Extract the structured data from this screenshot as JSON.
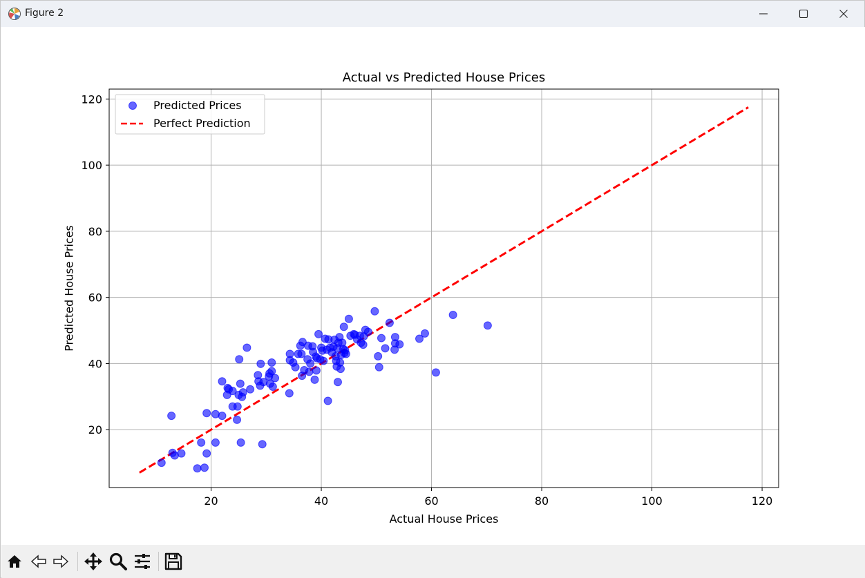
{
  "window": {
    "title": "Figure 2",
    "minimize_icon": "minimize-icon",
    "maximize_icon": "maximize-icon",
    "close_icon": "close-icon"
  },
  "toolbar": {
    "tools": [
      "home-icon",
      "back-arrow-icon",
      "forward-arrow-icon",
      "pan-icon",
      "zoom-icon",
      "configure-subplots-icon",
      "save-icon"
    ]
  },
  "chart_data": {
    "type": "scatter",
    "title": "Actual vs Predicted House Prices",
    "xlabel": "Actual House Prices",
    "ylabel": "Predicted House Prices",
    "xlim": [
      1.5,
      123
    ],
    "ylim": [
      2.5,
      123
    ],
    "xticks": [
      20,
      40,
      60,
      80,
      100,
      120
    ],
    "yticks": [
      20,
      40,
      60,
      80,
      100,
      120
    ],
    "grid": true,
    "legend_position": "upper-left",
    "colors": {
      "scatter": "#0000ff",
      "line": "#ff0000",
      "grid": "#b0b0b0"
    },
    "series": [
      {
        "name": "Predicted Prices",
        "kind": "scatter",
        "points": [
          [
            11,
            10
          ],
          [
            12.8,
            24.2
          ],
          [
            13,
            13
          ],
          [
            13.4,
            12.2
          ],
          [
            14.6,
            12.8
          ],
          [
            17.5,
            8.3
          ],
          [
            18.2,
            16.1
          ],
          [
            18.8,
            8.5
          ],
          [
            19.2,
            12.8
          ],
          [
            19.2,
            25
          ],
          [
            20.8,
            24.7
          ],
          [
            20.8,
            16.1
          ],
          [
            22,
            24.2
          ],
          [
            22,
            34.6
          ],
          [
            22.9,
            30.5
          ],
          [
            23,
            32.6
          ],
          [
            23.2,
            32.2
          ],
          [
            23.9,
            31.7
          ],
          [
            23.9,
            27
          ],
          [
            24.7,
            23
          ],
          [
            24.8,
            27
          ],
          [
            25,
            30.5
          ],
          [
            25.1,
            41.3
          ],
          [
            25.3,
            33.9
          ],
          [
            25.4,
            16.1
          ],
          [
            25.6,
            29.9
          ],
          [
            25.8,
            31.3
          ],
          [
            26.5,
            44.8
          ],
          [
            27.1,
            32.2
          ],
          [
            28.5,
            36.5
          ],
          [
            28.6,
            34.6
          ],
          [
            28.9,
            33.3
          ],
          [
            29,
            39.9
          ],
          [
            29.3,
            15.6
          ],
          [
            29.5,
            34.4
          ],
          [
            30.5,
            36.1
          ],
          [
            30.6,
            37
          ],
          [
            30.7,
            33.9
          ],
          [
            31,
            37.7
          ],
          [
            31,
            40.3
          ],
          [
            31.2,
            33
          ],
          [
            31.6,
            35.6
          ],
          [
            34.2,
            31
          ],
          [
            34.3,
            42.9
          ],
          [
            34.3,
            41
          ],
          [
            34.9,
            40.3
          ],
          [
            35.3,
            38.9
          ],
          [
            35.8,
            42.9
          ],
          [
            36.2,
            45.4
          ],
          [
            36.4,
            42.9
          ],
          [
            36.5,
            36.3
          ],
          [
            36.6,
            46.5
          ],
          [
            36.9,
            38
          ],
          [
            37.5,
            41.3
          ],
          [
            37.6,
            45.4
          ],
          [
            37.8,
            37.5
          ],
          [
            38,
            40
          ],
          [
            38.4,
            45.2
          ],
          [
            38.5,
            43.5
          ],
          [
            38.8,
            35.1
          ],
          [
            39,
            42.1
          ],
          [
            39.1,
            37.9
          ],
          [
            39.2,
            41.6
          ],
          [
            39.5,
            48.9
          ],
          [
            39.8,
            41.3
          ],
          [
            40,
            44.8
          ],
          [
            40.2,
            43.9
          ],
          [
            40.4,
            40.8
          ],
          [
            40.7,
            47.5
          ],
          [
            41,
            44.2
          ],
          [
            41.2,
            28.7
          ],
          [
            41.3,
            47.3
          ],
          [
            41.6,
            44.8
          ],
          [
            41.9,
            43.4
          ],
          [
            42.2,
            45.1
          ],
          [
            42.4,
            47.2
          ],
          [
            42.6,
            42.2
          ],
          [
            42.7,
            40.8
          ],
          [
            42.8,
            39.1
          ],
          [
            42.9,
            44.6
          ],
          [
            43,
            34.4
          ],
          [
            43.1,
            46.3
          ],
          [
            43.3,
            48
          ],
          [
            43.4,
            40.3
          ],
          [
            43.5,
            38.4
          ],
          [
            43.6,
            42.6
          ],
          [
            43.8,
            46.3
          ],
          [
            44,
            44.4
          ],
          [
            44.1,
            51.1
          ],
          [
            44.2,
            43.2
          ],
          [
            44.3,
            44
          ],
          [
            44.5,
            42.9
          ],
          [
            45,
            53.5
          ],
          [
            45.3,
            48.4
          ],
          [
            45.9,
            48.9
          ],
          [
            46.1,
            48.7
          ],
          [
            46.5,
            47.3
          ],
          [
            47,
            48.4
          ],
          [
            47.2,
            46.3
          ],
          [
            47.6,
            45.7
          ],
          [
            47.7,
            48.2
          ],
          [
            48,
            50.2
          ],
          [
            48.5,
            49.6
          ],
          [
            49.7,
            55.8
          ],
          [
            50.3,
            42.2
          ],
          [
            50.5,
            38.9
          ],
          [
            50.9,
            47.7
          ],
          [
            51.6,
            44.6
          ],
          [
            52.4,
            52.3
          ],
          [
            53.3,
            44.2
          ],
          [
            53.4,
            46.1
          ],
          [
            53.4,
            48
          ],
          [
            54.2,
            45.8
          ],
          [
            57.8,
            47.5
          ],
          [
            58.8,
            49.1
          ],
          [
            60.8,
            37.3
          ],
          [
            63.9,
            54.7
          ],
          [
            70.2,
            51.5
          ]
        ]
      },
      {
        "name": "Perfect Prediction",
        "kind": "line",
        "style": "dashed",
        "points": [
          [
            7,
            7
          ],
          [
            117.5,
            117.5
          ]
        ]
      }
    ]
  }
}
